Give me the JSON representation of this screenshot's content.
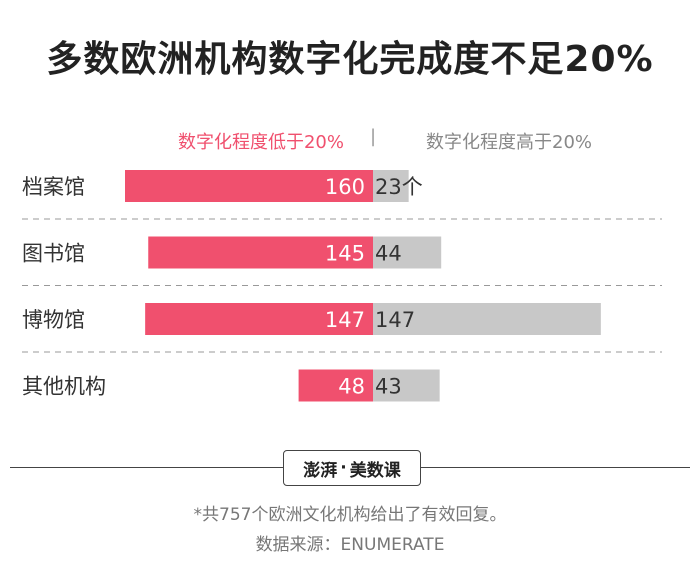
{
  "title": "多数欧洲机构数字化完成度不足20%",
  "legend": {
    "low": "数字化程度低于20%",
    "separator": "|",
    "high": "数字化程度高于20%"
  },
  "colors": {
    "low": "#f0506e",
    "high": "#c8c8c8"
  },
  "chart_data": {
    "type": "bar",
    "orientation": "diverging-horizontal",
    "categories": [
      "档案馆",
      "图书馆",
      "博物馆",
      "其他机构"
    ],
    "series": [
      {
        "name": "数字化程度低于20%",
        "values": [
          160,
          145,
          147,
          48
        ]
      },
      {
        "name": "数字化程度高于20%",
        "values": [
          23,
          44,
          147,
          43
        ]
      }
    ],
    "value_labels_right": [
      "23个",
      "44",
      "147",
      "43"
    ],
    "grid": "dashed separators between rows"
  },
  "brand": {
    "name1": "澎湃",
    "dot": "·",
    "name2": "美数课"
  },
  "footnotes": [
    "*共757个欧洲文化机构给出了有效回复。",
    "数据来源：ENUMERATE"
  ]
}
